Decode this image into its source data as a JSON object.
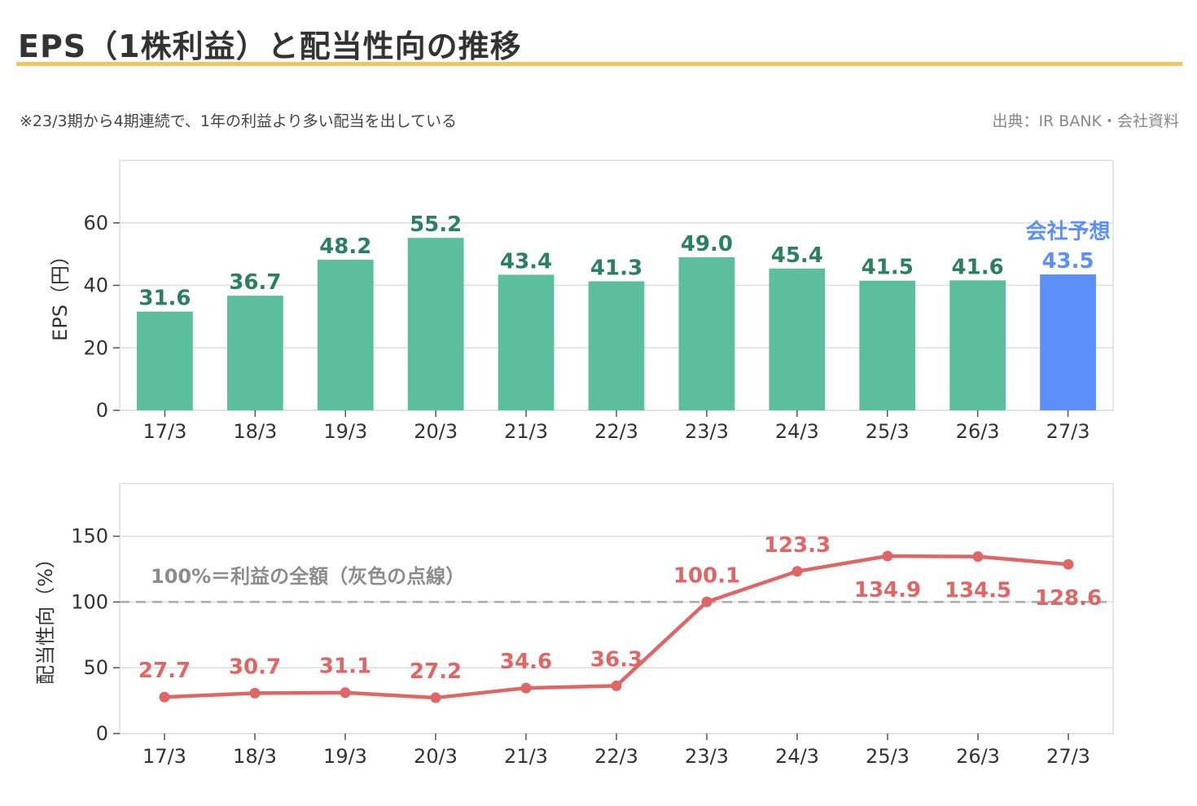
{
  "header": {
    "title": "EPS（1株利益）と配当性向の推移",
    "note": "※23/3期から4期連続で、1年の利益より多い配当を出している",
    "source": "出典：IR BANK・会社資料"
  },
  "colors": {
    "accent_rule": "#f1c65f",
    "bar": "#5bbf9d",
    "bar_forecast": "#5b8ff9",
    "bar_label": "#2a8060",
    "forecast_label": "#5b8ff9",
    "line": "#e06666",
    "reference_line": "#aaaaaa",
    "grid": "#dddddd"
  },
  "chart_data": [
    {
      "type": "bar",
      "categories": [
        "17/3",
        "18/3",
        "19/3",
        "20/3",
        "21/3",
        "22/3",
        "23/3",
        "24/3",
        "25/3",
        "26/3",
        "27/3"
      ],
      "values": [
        31.6,
        36.7,
        48.2,
        55.2,
        43.4,
        41.3,
        49.0,
        45.4,
        41.5,
        41.6,
        43.5
      ],
      "value_labels": [
        "31.6",
        "36.7",
        "48.2",
        "55.2",
        "43.4",
        "41.3",
        "49.0",
        "45.4",
        "41.5",
        "41.6",
        "43.5"
      ],
      "forecast_index": 10,
      "forecast_label": "会社予想",
      "ylabel": "EPS（円）",
      "ylim": [
        0,
        80
      ],
      "yticks": [
        0,
        20,
        40,
        60
      ],
      "grid": true
    },
    {
      "type": "line",
      "categories": [
        "17/3",
        "18/3",
        "19/3",
        "20/3",
        "21/3",
        "22/3",
        "23/3",
        "24/3",
        "25/3",
        "26/3",
        "27/3"
      ],
      "values": [
        27.7,
        30.7,
        31.1,
        27.2,
        34.6,
        36.3,
        100.1,
        123.3,
        134.9,
        134.5,
        128.6
      ],
      "value_labels": [
        "27.7",
        "30.7",
        "31.1",
        "27.2",
        "34.6",
        "36.3",
        "100.1",
        "123.3",
        "134.9",
        "134.5",
        "128.6"
      ],
      "label_placement": [
        "above",
        "above",
        "above",
        "above",
        "above",
        "above",
        "above",
        "above",
        "below",
        "below",
        "below"
      ],
      "ylabel": "配当性向（%）",
      "ylim": [
        0,
        190
      ],
      "yticks": [
        0,
        50,
        100,
        150
      ],
      "reference_line": {
        "y": 100,
        "style": "dashed"
      },
      "annotation": "100%＝利益の全額（灰色の点線）",
      "grid": true
    }
  ]
}
